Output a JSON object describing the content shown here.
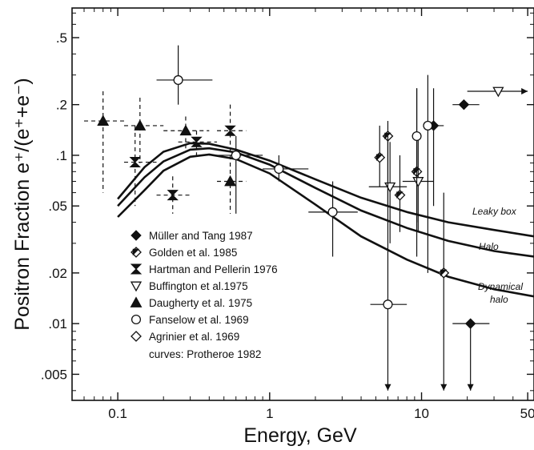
{
  "chart_data": {
    "type": "scatter",
    "title": "",
    "xlabel": "Energy, GeV",
    "ylabel": "Positron Fraction e⁺/(e⁺+e⁻)",
    "x_scale": "log",
    "y_scale": "log",
    "xlim": [
      0.05,
      55
    ],
    "ylim": [
      0.0035,
      0.75
    ],
    "x_ticks": [
      {
        "value": 0.1,
        "label": "0.1"
      },
      {
        "value": 1,
        "label": "1"
      },
      {
        "value": 10,
        "label": "10"
      },
      {
        "value": 50,
        "label": "50"
      }
    ],
    "y_ticks": [
      {
        "value": 0.5,
        "label": ".5"
      },
      {
        "value": 0.2,
        "label": ".2"
      },
      {
        "value": 0.1,
        "label": ".1"
      },
      {
        "value": 0.05,
        "label": ".05"
      },
      {
        "value": 0.02,
        "label": ".02"
      },
      {
        "value": 0.01,
        "label": ".01"
      },
      {
        "value": 0.005,
        "label": ".005"
      }
    ],
    "grid": false,
    "legend_position": "lower-left",
    "legend_note": "curves: Protheroe 1982",
    "series": [
      {
        "name": "Müller and Tang 1987",
        "marker": "diamond-filled",
        "points": [
          {
            "x": 12,
            "y": 0.15,
            "x_err": [
              10.5,
              14
            ],
            "y_err": [
              0.05,
              0.25
            ]
          },
          {
            "x": 19,
            "y": 0.2,
            "x_err": [
              16,
              24
            ]
          },
          {
            "x": 21,
            "y": 0.01,
            "x_err": [
              16,
              28
            ],
            "y_err": [
              0.004,
              0.01
            ],
            "lower_arrow": true
          }
        ]
      },
      {
        "name": "Golden et al. 1985",
        "marker": "diamond-half",
        "points": [
          {
            "x": 5.3,
            "y": 0.097,
            "y_err": [
              0.065,
              0.15
            ]
          },
          {
            "x": 6.0,
            "y": 0.13,
            "y_err": [
              0.05,
              0.16
            ]
          },
          {
            "x": 7.2,
            "y": 0.058,
            "y_err": [
              0.035,
              0.1
            ]
          },
          {
            "x": 9.3,
            "y": 0.08,
            "y_err": [
              0.025,
              0.25
            ]
          },
          {
            "x": 14,
            "y": 0.02,
            "y_err": [
              0.004,
              0.06
            ],
            "lower_arrow": true
          }
        ]
      },
      {
        "name": "Hartman and Pellerin 1976",
        "marker": "bowtie",
        "points": [
          {
            "x": 0.13,
            "y": 0.091,
            "x_err": [
              0.11,
              0.18
            ],
            "y_err": [
              0.05,
              0.15
            ],
            "dashed": true
          },
          {
            "x": 0.23,
            "y": 0.058,
            "x_err": [
              0.18,
              0.3
            ],
            "y_err": [
              0.045,
              0.075
            ],
            "dashed": true
          },
          {
            "x": 0.33,
            "y": 0.12,
            "x_err": [
              0.25,
              0.45
            ],
            "y_err": [
              0.1,
              0.14
            ],
            "dashed": true
          },
          {
            "x": 0.55,
            "y": 0.14,
            "x_err": [
              0.45,
              0.7
            ],
            "y_err": [
              0.1,
              0.2
            ],
            "dashed": true
          }
        ]
      },
      {
        "name": "Buffington et al.1975",
        "marker": "triangle-down-open",
        "points": [
          {
            "x": 6.2,
            "y": 0.065,
            "x_err": [
              4.5,
              8
            ],
            "y_err": [
              0.03,
              0.12
            ]
          },
          {
            "x": 9.5,
            "y": 0.07,
            "x_err": [
              7.5,
              12
            ],
            "y_err": [
              0.035,
              0.13
            ]
          },
          {
            "x": 32,
            "y": 0.24,
            "x_err": [
              20,
              50
            ],
            "right_arrow": true
          }
        ]
      },
      {
        "name": "Daugherty et al. 1975",
        "marker": "triangle-up-filled",
        "points": [
          {
            "x": 0.08,
            "y": 0.16,
            "x_err": [
              0.06,
              0.11
            ],
            "y_err": [
              0.06,
              0.24
            ],
            "dashed": true
          },
          {
            "x": 0.14,
            "y": 0.15,
            "x_err": [
              0.11,
              0.2
            ],
            "y_err": [
              0.09,
              0.22
            ],
            "dashed": true
          },
          {
            "x": 0.28,
            "y": 0.14,
            "x_err": [
              0.2,
              0.4
            ],
            "y_err": [
              0.11,
              0.17
            ],
            "dashed": true
          },
          {
            "x": 0.55,
            "y": 0.07,
            "x_err": [
              0.45,
              0.7
            ],
            "y_err": [
              0.045,
              0.1
            ],
            "dashed": true
          }
        ]
      },
      {
        "name": "Fanselow et al. 1969",
        "marker": "circle-open",
        "points": [
          {
            "x": 0.25,
            "y": 0.28,
            "x_err": [
              0.18,
              0.42
            ],
            "y_err": [
              0.2,
              0.45
            ]
          },
          {
            "x": 0.6,
            "y": 0.1,
            "x_err": [
              0.4,
              0.9
            ],
            "y_err": [
              0.045,
              0.13
            ]
          },
          {
            "x": 1.15,
            "y": 0.083,
            "x_err": [
              0.9,
              1.8
            ],
            "y_err": [
              0.07,
              0.1
            ]
          },
          {
            "x": 2.6,
            "y": 0.046,
            "x_err": [
              1.8,
              3.8
            ],
            "y_err": [
              0.025,
              0.07
            ]
          },
          {
            "x": 6.0,
            "y": 0.013,
            "x_err": [
              4.6,
              8
            ],
            "y_err": [
              0.004,
              0.13
            ],
            "lower_arrow": true
          },
          {
            "x": 11,
            "y": 0.15,
            "y_err": [
              0.02,
              0.3
            ]
          },
          {
            "x": 9.3,
            "y": 0.13,
            "y_err": [
              0.04,
              0.25
            ]
          }
        ]
      },
      {
        "name": "Agrinier et al. 1969",
        "marker": "diamond-open",
        "points": []
      }
    ],
    "curves": [
      {
        "label": "Leaky box",
        "points": [
          [
            0.1,
            0.055
          ],
          [
            0.15,
            0.085
          ],
          [
            0.2,
            0.105
          ],
          [
            0.3,
            0.118
          ],
          [
            0.4,
            0.117
          ],
          [
            0.6,
            0.108
          ],
          [
            1,
            0.093
          ],
          [
            2,
            0.072
          ],
          [
            4,
            0.056
          ],
          [
            8,
            0.046
          ],
          [
            15,
            0.04
          ],
          [
            30,
            0.036
          ],
          [
            55,
            0.033
          ]
        ]
      },
      {
        "label": "Halo",
        "points": [
          [
            0.1,
            0.05
          ],
          [
            0.15,
            0.074
          ],
          [
            0.2,
            0.092
          ],
          [
            0.3,
            0.108
          ],
          [
            0.4,
            0.11
          ],
          [
            0.6,
            0.104
          ],
          [
            1,
            0.088
          ],
          [
            2,
            0.064
          ],
          [
            4,
            0.047
          ],
          [
            8,
            0.037
          ],
          [
            15,
            0.031
          ],
          [
            30,
            0.027
          ],
          [
            55,
            0.025
          ]
        ]
      },
      {
        "label": "Dynamical halo",
        "points": [
          [
            0.1,
            0.043
          ],
          [
            0.15,
            0.062
          ],
          [
            0.2,
            0.081
          ],
          [
            0.3,
            0.098
          ],
          [
            0.4,
            0.101
          ],
          [
            0.6,
            0.095
          ],
          [
            1,
            0.078
          ],
          [
            2,
            0.051
          ],
          [
            4,
            0.033
          ],
          [
            8,
            0.024
          ],
          [
            15,
            0.019
          ],
          [
            30,
            0.016
          ],
          [
            55,
            0.0145
          ]
        ]
      }
    ]
  }
}
